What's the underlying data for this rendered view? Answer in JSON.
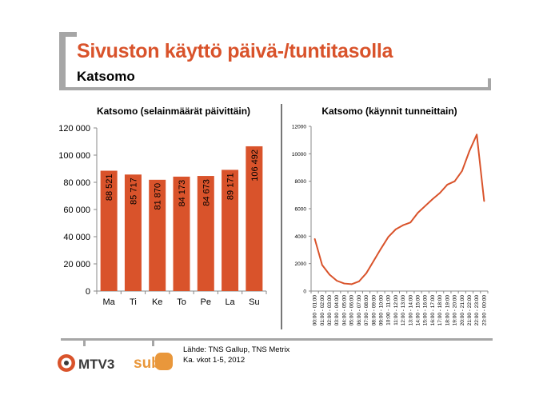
{
  "header": {
    "title": "Sivuston käyttö päivä-/tuntitasolla",
    "subtitle": "Katsomo"
  },
  "chart_data": [
    {
      "type": "bar",
      "title": "Katsomo (selainmäärät päivittäin)",
      "categories": [
        "Ma",
        "Ti",
        "Ke",
        "To",
        "Pe",
        "La",
        "Su"
      ],
      "values": [
        88521,
        85717,
        81870,
        84173,
        84673,
        89171,
        106492
      ],
      "value_labels": [
        "88 521",
        "85 717",
        "81 870",
        "84 173",
        "84 673",
        "89 171",
        "106 492"
      ],
      "ylim": [
        0,
        120000
      ],
      "yticks": [
        0,
        20000,
        40000,
        60000,
        80000,
        100000,
        120000
      ],
      "ytick_labels": [
        "0",
        "20 000",
        "40 000",
        "60 000",
        "80 000",
        "100 000",
        "120 000"
      ],
      "color": "#d9532b"
    },
    {
      "type": "line",
      "title": "Katsomo (käynnit tunneittain)",
      "x": [
        "00:00 - 01:00",
        "01:00 - 02:00",
        "02:00 - 03:00",
        "03:00 - 04:00",
        "04:00 - 05:00",
        "05:00 - 06:00",
        "06:00 - 07:00",
        "07:00 - 08:00",
        "08:00 - 09:00",
        "09:00 - 10:00",
        "10:00 - 11:00",
        "11:00 - 12:00",
        "12:00 - 13:00",
        "13:00 - 14:00",
        "14:00 - 15:00",
        "15:00 - 16:00",
        "16:00 - 17:00",
        "17:00 - 18:00",
        "18:00 - 19:00",
        "19:00 - 20:00",
        "20:00 - 21:00",
        "21:00 - 22:00",
        "22:00 - 23:00",
        "23:00 - 00:00"
      ],
      "values": [
        3800,
        1900,
        1200,
        750,
        550,
        500,
        700,
        1300,
        2200,
        3100,
        3950,
        4500,
        4800,
        5000,
        5700,
        6200,
        6700,
        7150,
        7750,
        8000,
        8750,
        10200,
        11400,
        6550
      ],
      "ylim": [
        0,
        12000
      ],
      "yticks": [
        0,
        2000,
        4000,
        6000,
        8000,
        10000,
        12000
      ],
      "color": "#d9532b"
    }
  ],
  "footer": {
    "source_line1": "Lähde: TNS Gallup, TNS Metrix",
    "source_line2": "Ka. vkot 1-5, 2012",
    "logo_mtv3": "MTV3",
    "logo_sub": "sub"
  }
}
